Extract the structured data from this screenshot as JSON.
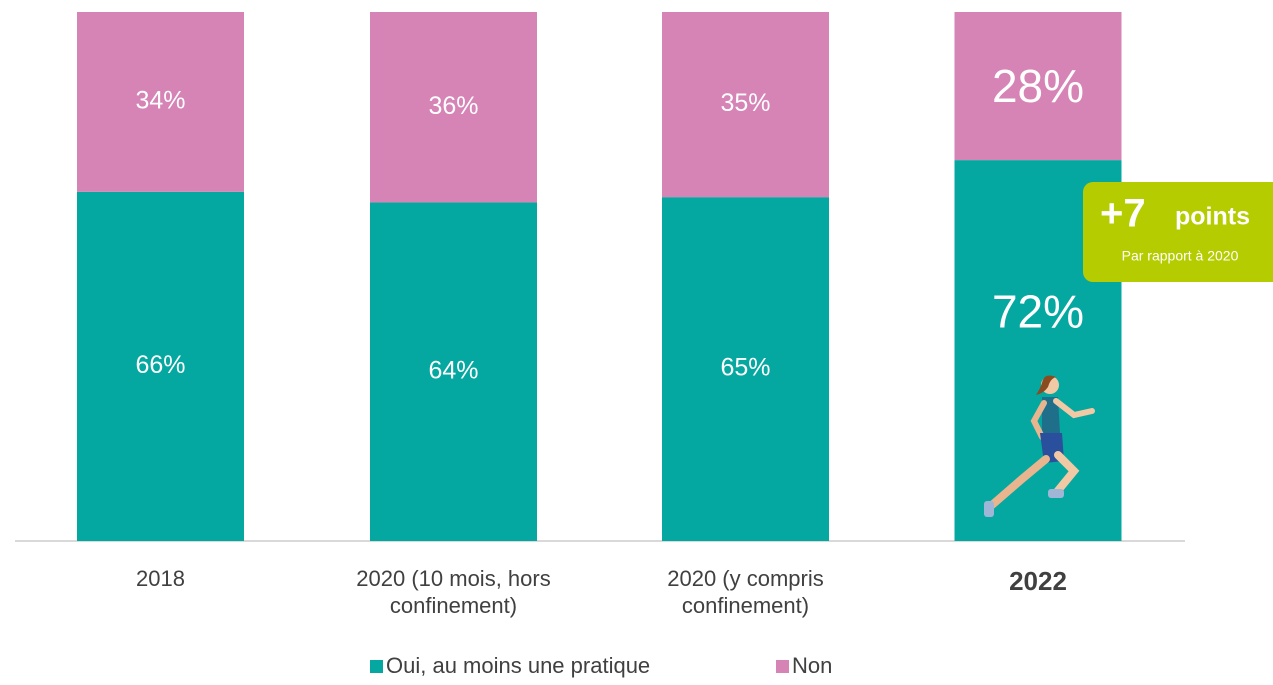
{
  "chart_data": {
    "type": "stacked_bar",
    "categories": [
      "2018",
      "2020 (10 mois, hors confinement)",
      "2020 (y compris confinement)",
      "2022"
    ],
    "series": [
      {
        "name": "Oui, au moins une pratique",
        "color": "#05a8a0",
        "values": [
          66,
          64,
          65,
          72
        ],
        "value_labels": [
          "66%",
          "64%",
          "65%",
          "72%"
        ]
      },
      {
        "name": "Non",
        "color": "#d683b6",
        "values": [
          34,
          36,
          35,
          28
        ],
        "value_labels": [
          "34%",
          "36%",
          "35%",
          "28%"
        ]
      }
    ],
    "ylim": [
      0,
      100
    ],
    "annotation": {
      "value_text": "+7",
      "unit_text": "points",
      "note": "Par rapport à 2020"
    }
  }
}
